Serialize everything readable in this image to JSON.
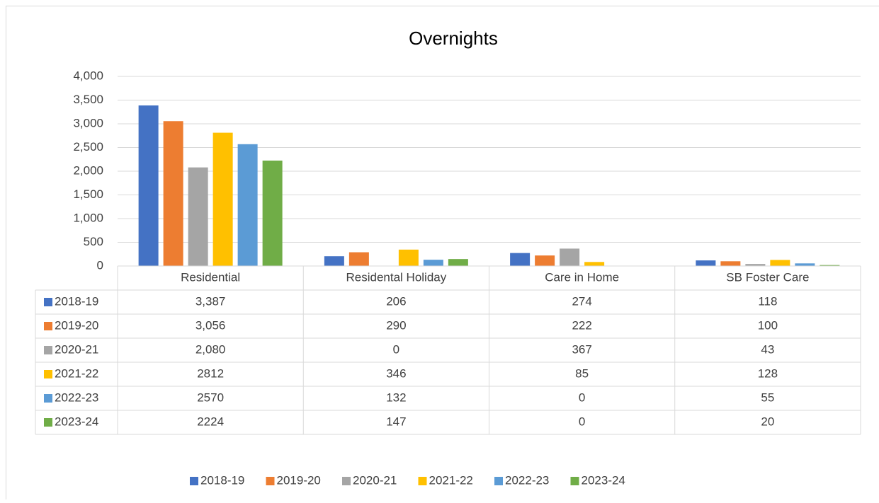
{
  "chart_data": {
    "type": "bar",
    "title": "Overnights",
    "categories": [
      "Residential",
      "Residental Holiday",
      "Care in Home",
      "SB Foster Care"
    ],
    "series": [
      {
        "name": "2018-19",
        "color": "#4472c4",
        "values": [
          3387,
          206,
          274,
          118
        ],
        "value_labels": [
          "3,387",
          "206",
          "274",
          "118"
        ]
      },
      {
        "name": "2019-20",
        "color": "#ed7d31",
        "values": [
          3056,
          290,
          222,
          100
        ],
        "value_labels": [
          "3,056",
          "290",
          "222",
          "100"
        ]
      },
      {
        "name": "2020-21",
        "color": "#a5a5a5",
        "values": [
          2080,
          0,
          367,
          43
        ],
        "value_labels": [
          "2,080",
          "0",
          "367",
          "43"
        ]
      },
      {
        "name": "2021-22",
        "color": "#ffc000",
        "values": [
          2812,
          346,
          85,
          128
        ]
      },
      {
        "name": "2022-23",
        "color": "#5b9bd5",
        "values": [
          2570,
          132,
          0,
          55
        ]
      },
      {
        "name": "2023-24",
        "color": "#70ad47",
        "values": [
          2224,
          147,
          0,
          20
        ]
      }
    ],
    "ylim": [
      0,
      4000
    ],
    "yticks": [
      0,
      500,
      {
        "value": 1000,
        "label": "1,000"
      },
      {
        "value": 1500,
        "label": "1,500"
      },
      {
        "value": 2000,
        "label": "2,000"
      },
      {
        "value": 2500,
        "label": "2,500"
      },
      {
        "value": 3000,
        "label": "3,000"
      },
      {
        "value": 3500,
        "label": "3,500"
      },
      {
        "value": 4000,
        "label": "4,000"
      }
    ],
    "grid": true,
    "data_table": true,
    "legend": "bottom"
  }
}
